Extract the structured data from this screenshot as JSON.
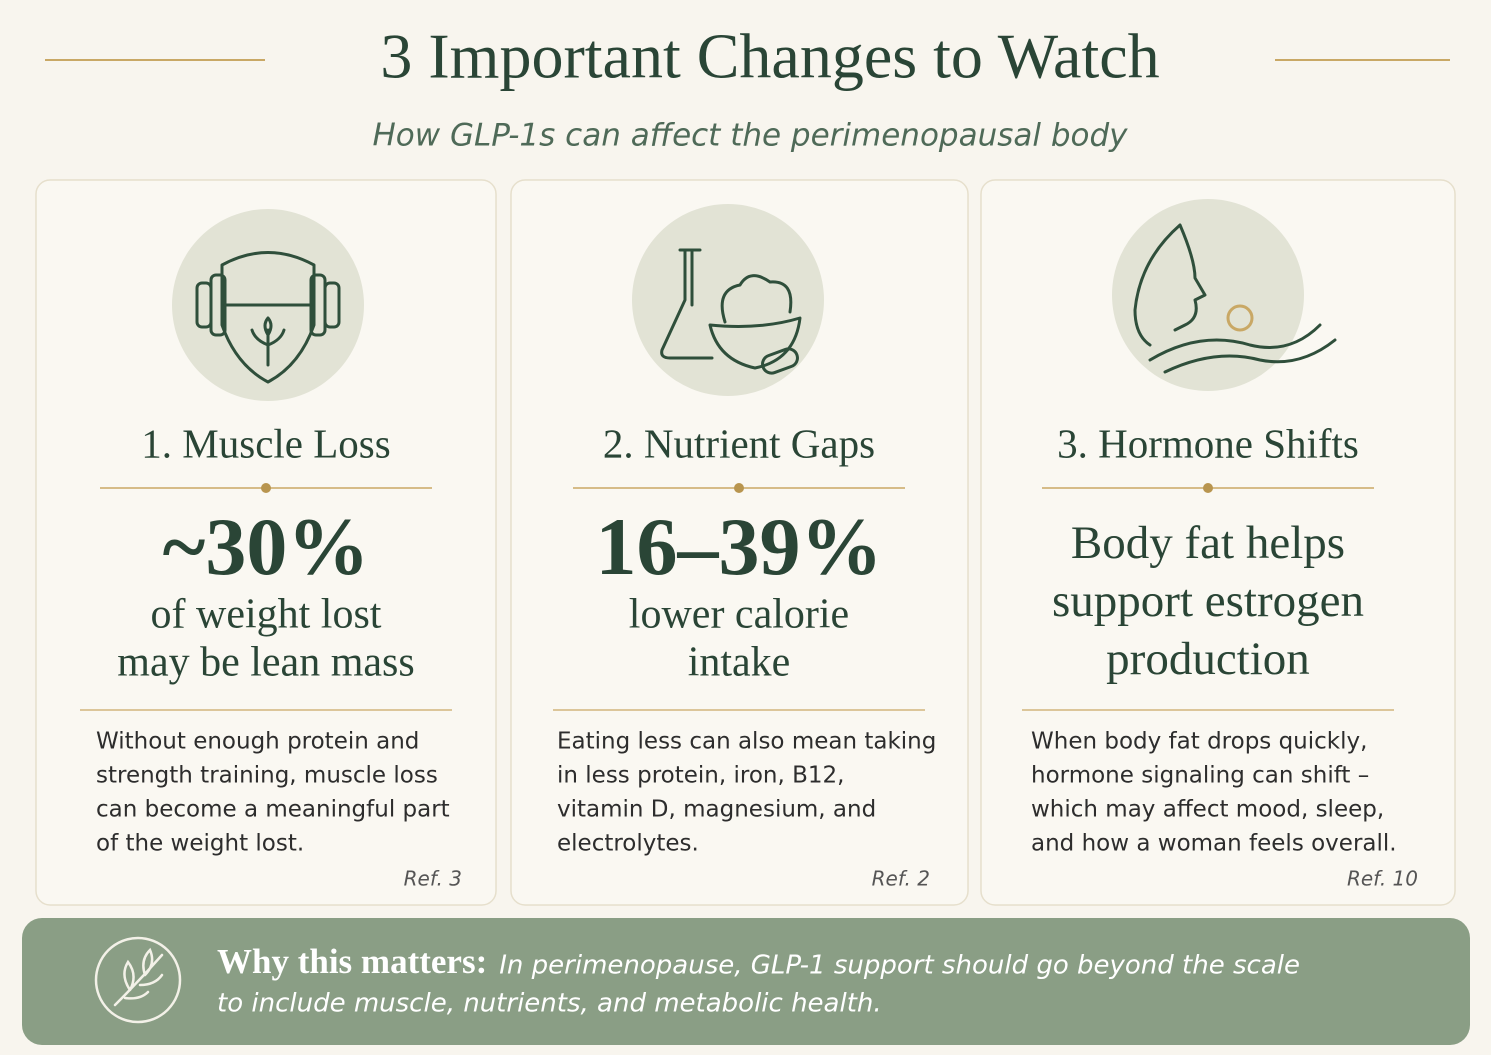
{
  "header": {
    "title": "3 Important Changes to Watch",
    "subtitle": "How GLP-1s can affect the perimenopausal body"
  },
  "cards": [
    {
      "heading": "1. Muscle Loss",
      "stat": "~30%",
      "stat_lines": [
        "of weight lost",
        "may be lean mass"
      ],
      "body_lines": [
        "Without enough protein and",
        "strength training, muscle loss",
        "can become a meaningful part",
        "of the weight lost."
      ],
      "ref": "Ref. 3"
    },
    {
      "heading": "2. Nutrient Gaps",
      "stat": "16–39%",
      "stat_lines": [
        "lower calorie",
        "intake"
      ],
      "body_lines": [
        "Eating less can also mean taking",
        "in less protein, iron, B12,",
        "vitamin D, magnesium, and",
        "electrolytes."
      ],
      "ref": "Ref. 2"
    },
    {
      "heading": "3. Hormone Shifts",
      "stat_lines": [
        "Body fat helps",
        "support estrogen",
        "production"
      ],
      "body_lines": [
        "When body fat drops quickly,",
        "hormone signaling can shift –",
        "which may affect mood, sleep,",
        "and how a woman feels overall."
      ],
      "ref": "Ref. 10"
    }
  ],
  "footer": {
    "label": "Why this matters:",
    "lines": [
      "In perimenopause, GLP-1 support should go beyond the scale",
      "to include muscle, nutrients, and metabolic health."
    ]
  }
}
